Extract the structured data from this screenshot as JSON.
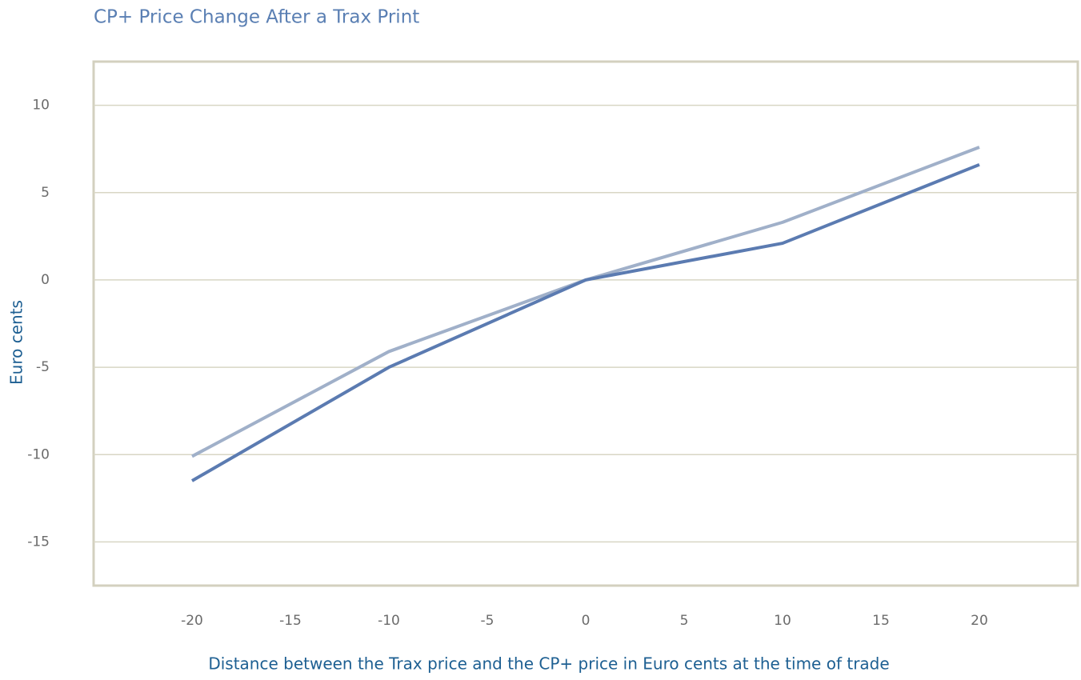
{
  "chart_data": {
    "type": "line",
    "title": "CP+ Price Change After a Trax Print",
    "x_label": "Distance between the Trax price and the CP+ price in Euro cents at the time of trade",
    "y_label": "Euro cents",
    "x": [
      -20,
      -10,
      0,
      10,
      20
    ],
    "series": [
      {
        "color": "#5b7bb1",
        "values": [
          -11.5,
          -5,
          0,
          2.1,
          6.6
        ]
      },
      {
        "color": "#a0b0c9",
        "values": [
          -10.1,
          -4.1,
          0,
          3.3,
          7.6
        ]
      }
    ],
    "xlim": [
      -25,
      25
    ],
    "xticks": [
      -20,
      -15,
      -10,
      -5,
      0,
      5,
      10,
      15,
      20
    ],
    "ylim": [
      -17.5,
      12.5
    ],
    "yticks": [
      10,
      5,
      0,
      -5,
      -10,
      -15
    ],
    "grid": true
  }
}
